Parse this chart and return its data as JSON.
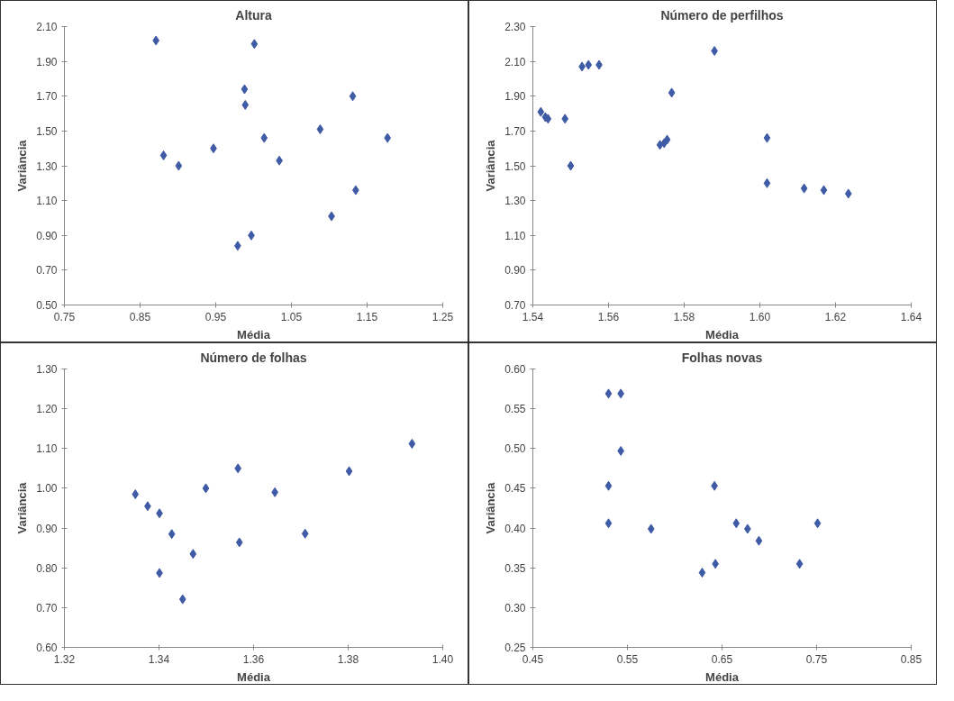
{
  "chart_data": [
    {
      "type": "scatter",
      "title": "Altura",
      "xlabel": "Média",
      "ylabel": "Variância",
      "marker": "diamond",
      "grid": false,
      "xlim": [
        0.75,
        1.25
      ],
      "xticks": [
        {
          "value": 0.75,
          "label": "0.75"
        },
        {
          "value": 0.85,
          "label": "0.85"
        },
        {
          "value": 0.95,
          "label": "0.95"
        },
        {
          "value": 1.05,
          "label": "1.05"
        },
        {
          "value": 1.15,
          "label": "1.15"
        },
        {
          "value": 1.25,
          "label": "1.25"
        }
      ],
      "ylim": [
        0.5,
        2.1
      ],
      "yticks": [
        {
          "value": 0.5,
          "label": "0.50"
        },
        {
          "value": 0.7,
          "label": "0.70"
        },
        {
          "value": 0.9,
          "label": "0.90"
        },
        {
          "value": 1.1,
          "label": "1.10"
        },
        {
          "value": 1.3,
          "label": "1.30"
        },
        {
          "value": 1.5,
          "label": "1.50"
        },
        {
          "value": 1.7,
          "label": "1.70"
        },
        {
          "value": 1.9,
          "label": "1.90"
        },
        {
          "value": 2.1,
          "label": "2.10"
        }
      ],
      "series": [
        {
          "color": "#3f5ba6",
          "x": [
            0.871,
            0.881,
            0.901,
            0.947,
            0.979,
            0.988,
            0.989,
            0.997,
            1.001,
            1.014,
            1.034,
            1.088,
            1.103,
            1.131,
            1.135,
            1.177
          ],
          "values": [
            2.02,
            1.36,
            1.3,
            1.4,
            0.84,
            1.74,
            1.65,
            0.9,
            2.0,
            1.46,
            1.33,
            1.51,
            1.01,
            1.7,
            1.16,
            1.46
          ]
        }
      ]
    },
    {
      "type": "scatter",
      "title": "Número de perfilhos",
      "xlabel": "Média",
      "ylabel": "Variância",
      "marker": "diamond",
      "grid": false,
      "xlim": [
        1.54,
        1.64
      ],
      "xticks": [
        {
          "value": 1.54,
          "label": "1.54"
        },
        {
          "value": 1.56,
          "label": "1.56"
        },
        {
          "value": 1.58,
          "label": "1.58"
        },
        {
          "value": 1.6,
          "label": "1.60"
        },
        {
          "value": 1.62,
          "label": "1.62"
        },
        {
          "value": 1.64,
          "label": "1.64"
        }
      ],
      "ylim": [
        0.7,
        2.3
      ],
      "yticks": [
        {
          "value": 0.7,
          "label": "0.70"
        },
        {
          "value": 0.9,
          "label": "0.90"
        },
        {
          "value": 1.1,
          "label": "1.10"
        },
        {
          "value": 1.3,
          "label": "1.30"
        },
        {
          "value": 1.5,
          "label": "1.50"
        },
        {
          "value": 1.7,
          "label": "1.70"
        },
        {
          "value": 1.9,
          "label": "1.90"
        },
        {
          "value": 2.1,
          "label": "2.10"
        },
        {
          "value": 2.3,
          "label": "2.30"
        }
      ],
      "series": [
        {
          "color": "#3f5ba6",
          "x": [
            1.5421,
            1.5433,
            1.544,
            1.5485,
            1.55,
            1.553,
            1.5547,
            1.5575,
            1.5736,
            1.5747,
            1.5755,
            1.5767,
            1.588,
            1.6019,
            1.6019,
            1.6117,
            1.6169,
            1.6234
          ],
          "values": [
            1.81,
            1.78,
            1.77,
            1.77,
            1.5,
            2.07,
            2.08,
            2.08,
            1.62,
            1.63,
            1.65,
            1.92,
            2.16,
            1.66,
            1.4,
            1.37,
            1.36,
            1.34
          ]
        }
      ]
    },
    {
      "type": "scatter",
      "title": "Número de folhas",
      "xlabel": "Média",
      "ylabel": "Variância",
      "marker": "diamond",
      "grid": false,
      "xlim": [
        1.32,
        1.4
      ],
      "xticks": [
        {
          "value": 1.32,
          "label": "1.32"
        },
        {
          "value": 1.34,
          "label": "1.34"
        },
        {
          "value": 1.36,
          "label": "1.36"
        },
        {
          "value": 1.38,
          "label": "1.38"
        },
        {
          "value": 1.4,
          "label": "1.40"
        }
      ],
      "ylim": [
        0.6,
        1.3
      ],
      "yticks": [
        {
          "value": 0.6,
          "label": "0.60"
        },
        {
          "value": 0.7,
          "label": "0.70"
        },
        {
          "value": 0.8,
          "label": "0.80"
        },
        {
          "value": 0.9,
          "label": "0.90"
        },
        {
          "value": 1.0,
          "label": "1.00"
        },
        {
          "value": 1.1,
          "label": "1.10"
        },
        {
          "value": 1.2,
          "label": "1.20"
        },
        {
          "value": 1.3,
          "label": "1.30"
        }
      ],
      "series": [
        {
          "color": "#3f5ba6",
          "x": [
            1.335,
            1.3376,
            1.3401,
            1.3427,
            1.3401,
            1.345,
            1.3472,
            1.3499,
            1.3567,
            1.357,
            1.3645,
            1.3709,
            1.3802,
            1.3935
          ],
          "values": [
            0.985,
            0.955,
            0.937,
            0.885,
            0.787,
            0.721,
            0.835,
            1.0,
            1.05,
            0.864,
            0.99,
            0.886,
            1.043,
            1.112
          ]
        }
      ]
    },
    {
      "type": "scatter",
      "title": "Folhas novas",
      "xlabel": "Média",
      "ylabel": "Variância",
      "marker": "diamond",
      "grid": false,
      "xlim": [
        0.45,
        0.85
      ],
      "xticks": [
        {
          "value": 0.45,
          "label": "0.45"
        },
        {
          "value": 0.55,
          "label": "0.55"
        },
        {
          "value": 0.65,
          "label": "0.65"
        },
        {
          "value": 0.75,
          "label": "0.75"
        },
        {
          "value": 0.85,
          "label": "0.85"
        }
      ],
      "ylim": [
        0.25,
        0.6
      ],
      "yticks": [
        {
          "value": 0.25,
          "label": "0.25"
        },
        {
          "value": 0.3,
          "label": "0.30"
        },
        {
          "value": 0.35,
          "label": "0.35"
        },
        {
          "value": 0.4,
          "label": "0.40"
        },
        {
          "value": 0.45,
          "label": "0.45"
        },
        {
          "value": 0.5,
          "label": "0.50"
        },
        {
          "value": 0.55,
          "label": "0.55"
        },
        {
          "value": 0.6,
          "label": "0.60"
        }
      ],
      "series": [
        {
          "color": "#3f5ba6",
          "x": [
            0.53,
            0.543,
            0.543,
            0.53,
            0.53,
            0.575,
            0.629,
            0.642,
            0.643,
            0.665,
            0.677,
            0.689,
            0.732,
            0.751
          ],
          "values": [
            0.569,
            0.569,
            0.497,
            0.453,
            0.406,
            0.399,
            0.344,
            0.453,
            0.355,
            0.406,
            0.399,
            0.384,
            0.355,
            0.406
          ]
        }
      ]
    }
  ]
}
